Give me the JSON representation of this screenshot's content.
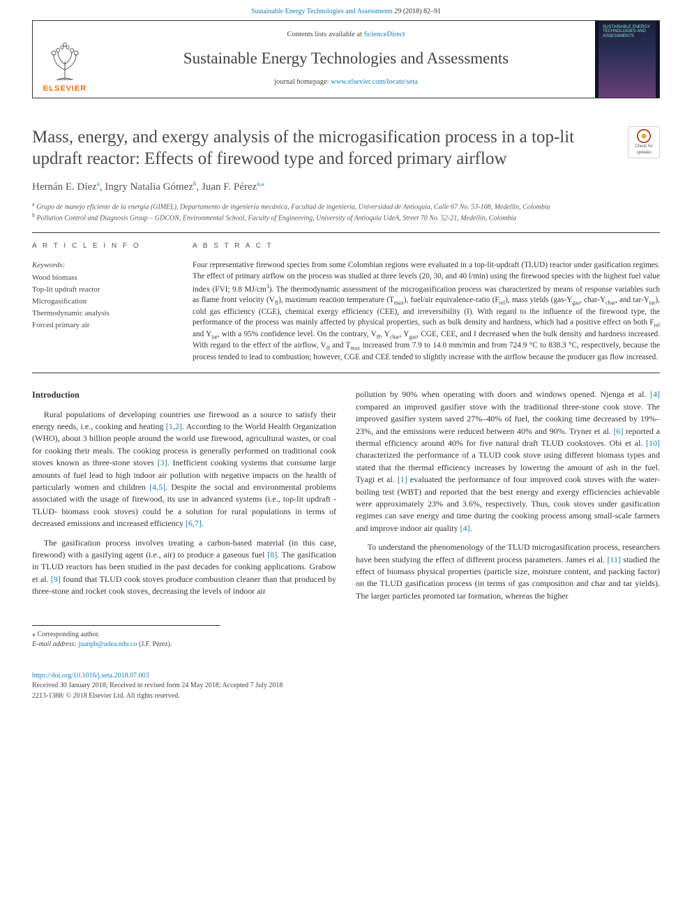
{
  "top_link": {
    "journal": "Sustainable Energy Technologies and Assessments",
    "ref": "29 (2018) 82–91"
  },
  "masthead": {
    "contents_prefix": "Contents lists available at ",
    "contents_link": "ScienceDirect",
    "journal_name": "Sustainable Energy Technologies and Assessments",
    "homepage_prefix": "journal homepage: ",
    "homepage_url": "www.elsevier.com/locate/seta",
    "publisher_word": "ELSEVIER",
    "cover_text": "SUSTAINABLE ENERGY TECHNOLOGIES AND ASSESSMENTS"
  },
  "crossmark": {
    "line1": "Check for",
    "line2": "updates"
  },
  "title": "Mass, energy, and exergy analysis of the microgasification process in a top-lit updraft reactor: Effects of firewood type and forced primary airflow",
  "authors_html": "Hernán E. Díez<sup><a href='#'>a</a></sup>, Ingry Natalia Gómez<sup><a href='#'>b</a></sup>, Juan F. Pérez<sup><a href='#'>a</a>,<a href='#'>⁎</a></sup>",
  "affiliations": [
    {
      "sup": "a",
      "text": "Grupo de manejo eficiente de la energía (GIMEL), Departamento de ingeniería mecánica, Facultad de ingeniería, Universidad de Antioquia, Calle 67 No. 53-108, Medellín, Colombia"
    },
    {
      "sup": "b",
      "text": "Pollution Control and Diagnosis Group – GDCON, Environmental School, Faculty of Engineering, University of Antioquia UdeA, Street 70 No. 52-21, Medellín, Colombia"
    }
  ],
  "info": {
    "head": "A R T I C L E  I N F O",
    "kw_label": "Keywords:",
    "keywords": [
      "Wood biomass",
      "Top-lit updraft reactor",
      "Microgasification",
      "Thermodynamic analysis",
      "Forced primary air"
    ]
  },
  "abstract": {
    "head": "A B S T R A C T",
    "text": "Four representative firewood species from some Colombian regions were evaluated in a top-lit-updraft (TLUD) reactor under gasification regimes. The effect of primary airflow on the process was studied at three levels (20, 30, and 40 l/min) using the firewood species with the highest fuel value index (FVI; 9.8 MJ/cm³). The thermodynamic assessment of the microgasification process was characterized by means of response variables such as flame front velocity (Vff), maximum reaction temperature (Tmax), fuel/air equivalence-ratio (Frel), mass yields (gas-Ygas, char-Ychar, and tar-Ytar), cold gas efficiency (CGE), chemical exergy efficiency (CEE), and irreversibility (I). With regard to the influence of the firewood type, the performance of the process was mainly affected by physical properties, such as bulk density and hardness, which had a positive effect on both Frel and Ytar, with a 95% confidence level. On the contrary, Vff, Ychar, Ygas, CGE, CEE, and I decreased when the bulk density and hardness increased. With regard to the effect of the airflow, Vff and Tmax increased from 7.9 to 14.0 mm/min and from 724.9 °C to 838.3 °C, respectively, because the process tended to lead to combustion; however, CGE and CEE tended to slightly increase with the airflow because the producer gas flow increased."
  },
  "body": {
    "intro_head": "Introduction",
    "p1": "Rural populations of developing countries use firewood as a source to satisfy their energy needs, i.e., cooking and heating [1,2]. According to the World Health Organization (WHO), about 3 billion people around the world use firewood, agricultural wastes, or coal for cooking their meals. The cooking process is generally performed on traditional cook stoves known as three-stone stoves [3]. Inefficient cooking systems that consume large amounts of fuel lead to high indoor air pollution with negative impacts on the health of particularly women and children [4,5]. Despite the social and environmental problems associated with the usage of firewood, its use in advanced systems (i.e., top-lit updraft -TLUD- biomass cook stoves) could be a solution for rural populations in terms of decreased emissions and increased efficiency [6,7].",
    "p2": "The gasification process involves treating a carbon-based material (in this case, firewood) with a gasifying agent (i.e., air) to produce a gaseous fuel [8]. The gasification in TLUD reactors has been studied in the past decades for cooking applications. Grabow et al. [9] found that TLUD cook stoves produce combustion cleaner than that produced by three-stone and rocket cook stoves, decreasing the levels of indoor air",
    "p3": "pollution by 90% when operating with doors and windows opened. Njenga et al. [4] compared an improved gasifier stove with the traditional three-stone cook stove. The improved gasifier system saved 27%–40% of fuel, the cooking time decreased by 19%–23%, and the emissions were reduced between 40% and 90%. Tryner et al. [6] reported a thermal efficiency around 40% for five natural draft TLUD cookstoves. Obi et al. [10] characterized the performance of a TLUD cook stove using different biomass types and stated that the thermal efficiency increases by lowering the amount of ash in the fuel. Tyagi et al. [1] evaluated the performance of four improved cook stoves with the water-boiling test (WBT) and reported that the best energy and exergy efficiencies achievable were approximately 23% and 3.6%, respectively. Thus, cook stoves under gasification regimes can save energy and time during the cooking process among small-scale farmers and improve indoor air quality [4].",
    "p4": "To understand the phenomenology of the TLUD microgasification process, researchers have been studying the effect of different process parameters. James et al. [11] studied the effect of biomass physical properties (particle size, moisture content, and packing factor) on the TLUD gasification process (in terms of gas composition and char and tar yields). The larger particles promoted tar formation, whereas the higher"
  },
  "cites": {
    "c12": "[1,2]",
    "c3": "[3]",
    "c45": "[4,5]",
    "c67": "[6,7]",
    "c8": "[8]",
    "c9": "[9]",
    "c4": "[4]",
    "c6": "[6]",
    "c10": "[10]",
    "c1": "[1]",
    "c11": "[11]"
  },
  "footnotes": {
    "corr": "⁎ Corresponding author.",
    "email_label": "E-mail address: ",
    "email": "juanpb@udea.edu.co",
    "email_who": " (J.F. Pérez)."
  },
  "footer": {
    "doi": "https://doi.org/10.1016/j.seta.2018.07.003",
    "history": "Received 30 January 2018; Received in revised form 24 May 2018; Accepted 7 July 2018",
    "copyright": "2213-1388/ © 2018 Elsevier Ltd. All rights reserved."
  },
  "colors": {
    "link": "#1680b8",
    "elsevier_orange": "#ff6a00",
    "text": "#333333",
    "rule": "#333333"
  }
}
